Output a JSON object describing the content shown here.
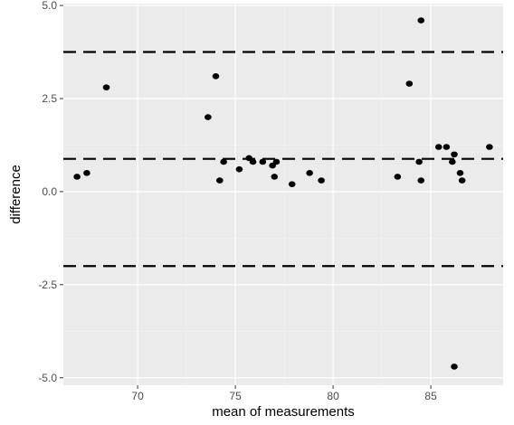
{
  "chart_data": {
    "type": "scatter",
    "title": "",
    "xlabel": "mean of measurements",
    "ylabel": "difference",
    "xlim": [
      66.2,
      88.7
    ],
    "ylim": [
      -5.2,
      5.05
    ],
    "x_ticks": [
      {
        "value": 70,
        "label": "70"
      },
      {
        "value": 75,
        "label": "75"
      },
      {
        "value": 80,
        "label": "80"
      },
      {
        "value": 85,
        "label": "85"
      }
    ],
    "y_ticks": [
      {
        "value": 5.0,
        "label": "5.0"
      },
      {
        "value": 2.5,
        "label": "2.5"
      },
      {
        "value": 0.0,
        "label": "0.0"
      },
      {
        "value": -2.5,
        "label": "-2.5"
      },
      {
        "value": -5.0,
        "label": "-5.0"
      }
    ],
    "reference_lines": [
      {
        "y": 3.75,
        "style": "dashed"
      },
      {
        "y": 0.88,
        "style": "dashed"
      },
      {
        "y": -2.0,
        "style": "dashed"
      }
    ],
    "points": [
      {
        "x": 66.9,
        "y": 0.4
      },
      {
        "x": 67.4,
        "y": 0.5
      },
      {
        "x": 68.4,
        "y": 2.8
      },
      {
        "x": 73.6,
        "y": 2.0
      },
      {
        "x": 74.0,
        "y": 3.1
      },
      {
        "x": 74.2,
        "y": 0.3
      },
      {
        "x": 74.4,
        "y": 0.8
      },
      {
        "x": 75.2,
        "y": 0.6
      },
      {
        "x": 75.7,
        "y": 0.9
      },
      {
        "x": 75.9,
        "y": 0.8
      },
      {
        "x": 76.4,
        "y": 0.8
      },
      {
        "x": 76.9,
        "y": 0.7
      },
      {
        "x": 77.1,
        "y": 0.8
      },
      {
        "x": 77.0,
        "y": 0.4
      },
      {
        "x": 77.9,
        "y": 0.2
      },
      {
        "x": 78.8,
        "y": 0.5
      },
      {
        "x": 79.4,
        "y": 0.3
      },
      {
        "x": 83.3,
        "y": 0.4
      },
      {
        "x": 83.9,
        "y": 2.9
      },
      {
        "x": 84.5,
        "y": 4.6
      },
      {
        "x": 84.4,
        "y": 0.8
      },
      {
        "x": 84.5,
        "y": 0.3
      },
      {
        "x": 85.4,
        "y": 1.2
      },
      {
        "x": 85.8,
        "y": 1.2
      },
      {
        "x": 86.1,
        "y": 0.8
      },
      {
        "x": 86.2,
        "y": 1.0
      },
      {
        "x": 86.5,
        "y": 0.5
      },
      {
        "x": 86.6,
        "y": 0.3
      },
      {
        "x": 88.0,
        "y": 1.2
      },
      {
        "x": 86.2,
        "y": -4.7
      }
    ],
    "grid": true,
    "legend": "none",
    "colors": {
      "panel_background": "#ebebeb",
      "grid_major": "#ffffff",
      "grid_minor": "#f5f5f5",
      "point": "#000000",
      "reference_line": "#000000"
    }
  }
}
